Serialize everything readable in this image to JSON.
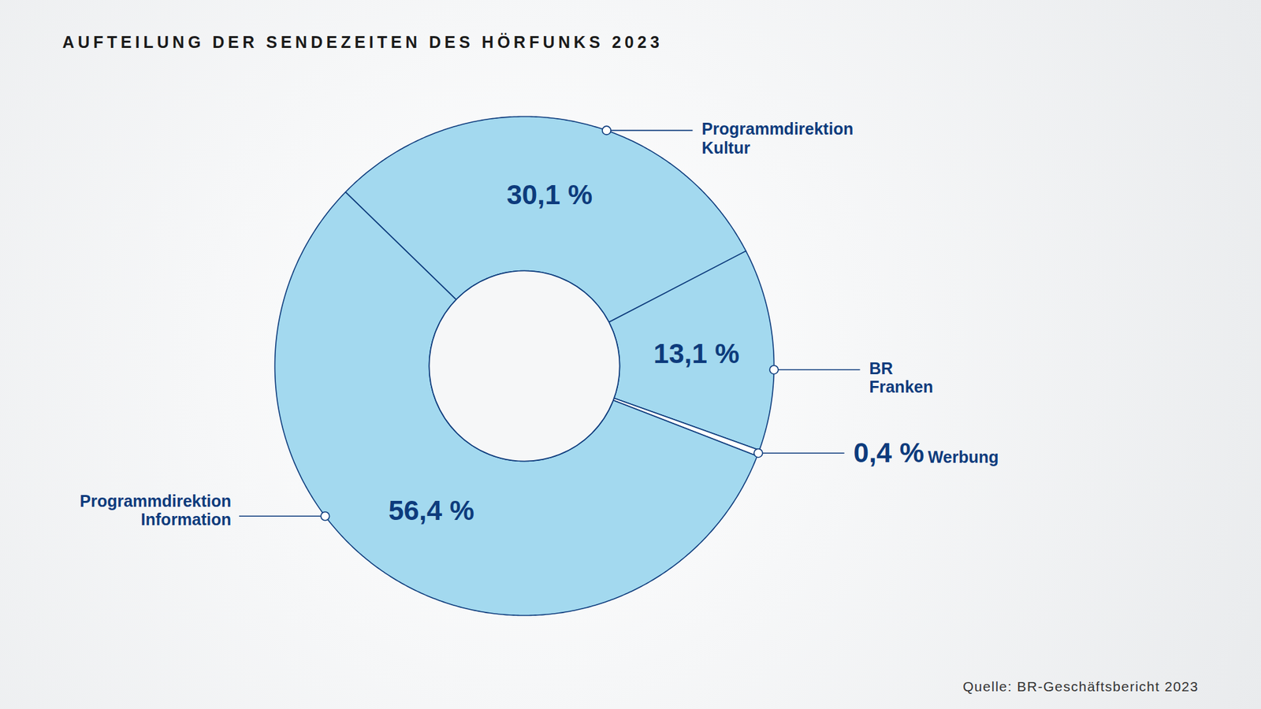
{
  "chart_data": {
    "type": "pie",
    "title": "AUFTEILUNG DER SENDEZEITEN DES HÖRFUNKS 2023",
    "caption": "Quelle: BR-Geschäftsbericht 2023",
    "categories": [
      "Programmdirektion Kultur",
      "BR Franken",
      "Werbung",
      "Programmdirektion Information"
    ],
    "values": [
      30.1,
      13.1,
      0.4,
      56.4
    ],
    "value_labels": [
      "30,1 %",
      "13,1 %",
      "0,4 %",
      "56,4 %"
    ],
    "colors": [
      "#a3d9ef",
      "#a3d9ef",
      "#ffffff",
      "#a3d9ef"
    ],
    "data_labels": true
  }
}
